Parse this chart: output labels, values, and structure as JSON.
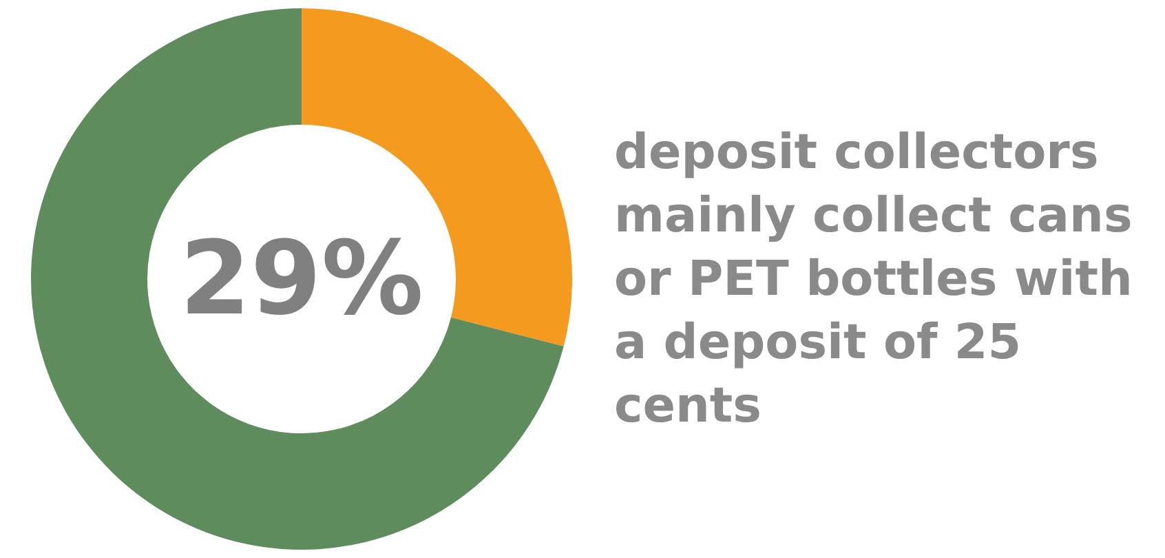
{
  "chart_data": {
    "type": "donut",
    "categories": [
      null,
      null
    ],
    "values": [
      29,
      71
    ],
    "colors": [
      "#f39a1f",
      "#5e8c5c"
    ],
    "annotations": [
      "29%",
      "deposit collectors mainly collect cans or PET bottles with a deposit of 25 cents"
    ],
    "legend": false
  }
}
